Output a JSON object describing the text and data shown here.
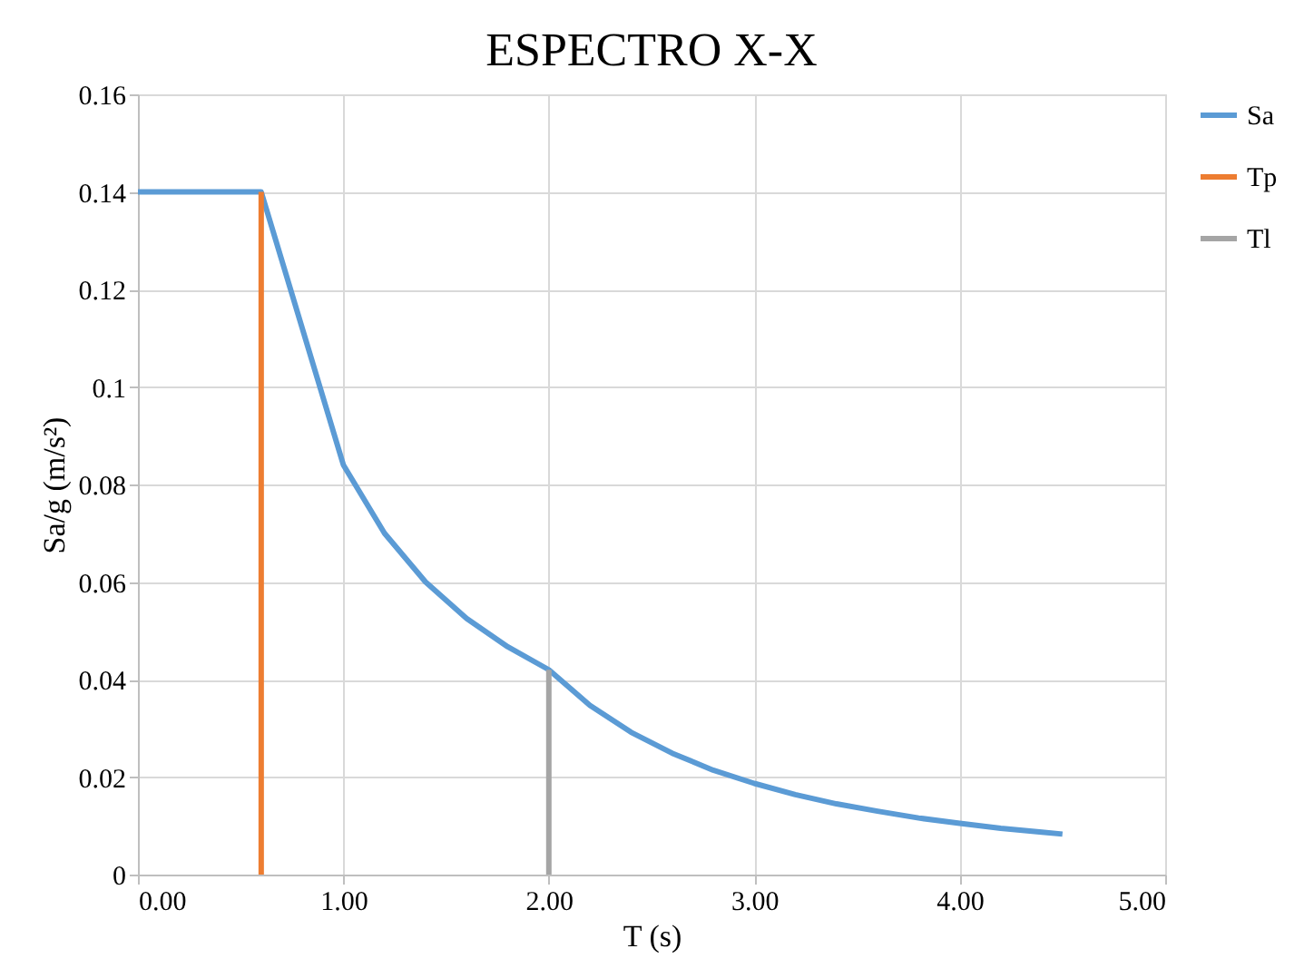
{
  "chart_data": {
    "type": "line",
    "title": "ESPECTRO X-X",
    "xlabel": "T (s)",
    "ylabel": "Sa/g (m/s²)",
    "xlim": [
      0,
      5
    ],
    "ylim": [
      0,
      0.16
    ],
    "xticks": [
      {
        "value": 0,
        "label": "0.00"
      },
      {
        "value": 1,
        "label": "1.00"
      },
      {
        "value": 2,
        "label": "2.00"
      },
      {
        "value": 3,
        "label": "3.00"
      },
      {
        "value": 4,
        "label": "4.00"
      },
      {
        "value": 5,
        "label": "5.00"
      }
    ],
    "yticks": [
      0,
      0.02,
      0.04,
      0.06,
      0.08,
      0.1,
      0.12,
      0.14,
      0.16
    ],
    "grid": true,
    "legend": "right",
    "marker": "none",
    "line_style": "solid",
    "series": [
      {
        "name": "Sa",
        "color": "#5b9bd5",
        "x": [
          0,
          0.6,
          1.0,
          1.2,
          1.4,
          1.6,
          1.8,
          2.0,
          2.2,
          2.4,
          2.6,
          2.8,
          3.0,
          3.2,
          3.4,
          3.6,
          3.8,
          4.0,
          4.2,
          4.4,
          4.5
        ],
        "values": [
          0.14,
          0.14,
          0.084,
          0.07,
          0.06,
          0.0525,
          0.0467,
          0.042,
          0.0347,
          0.0292,
          0.0249,
          0.0214,
          0.0187,
          0.0164,
          0.0145,
          0.013,
          0.0116,
          0.0105,
          0.0095,
          0.0087,
          0.0083
        ]
      },
      {
        "name": "Tp",
        "color": "#ed7d31",
        "x": [
          0.6,
          0.6
        ],
        "values": [
          0,
          0.14
        ]
      },
      {
        "name": "Tl",
        "color": "#a5a5a5",
        "x": [
          2,
          2
        ],
        "values": [
          0,
          0.042
        ]
      }
    ]
  }
}
